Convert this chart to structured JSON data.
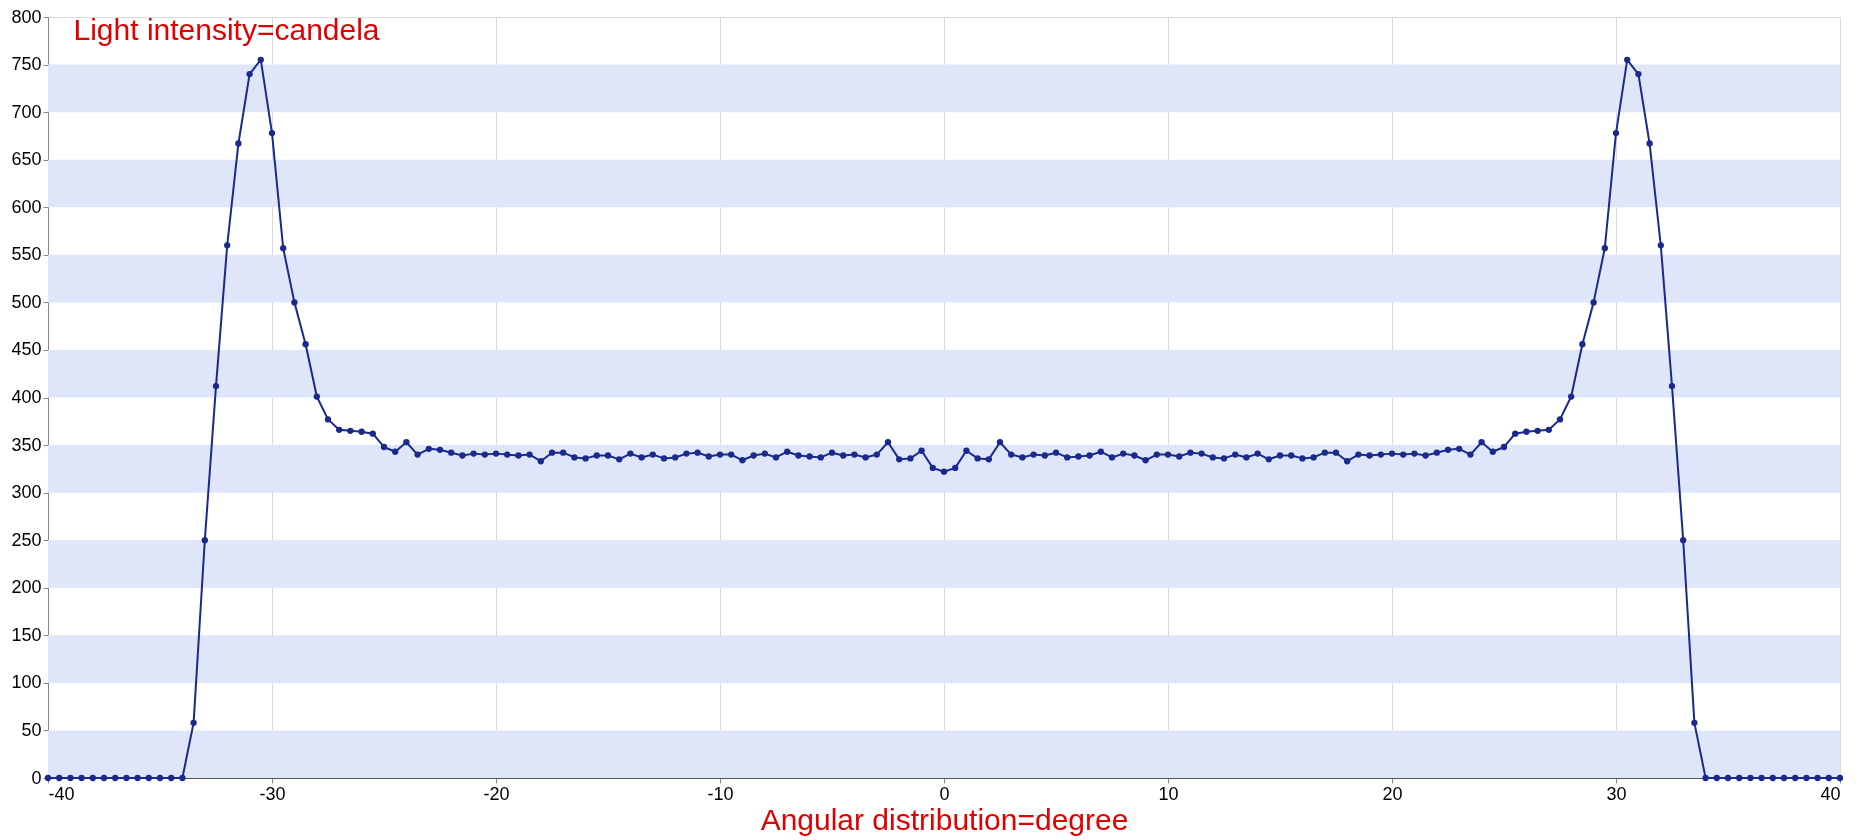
{
  "chart_data": {
    "type": "line",
    "xlabel": "Angular distribution=degree",
    "ylabel": "Light intensity=candela",
    "x": [
      -40,
      -39.5,
      -39,
      -38.5,
      -38,
      -37.5,
      -37,
      -36.5,
      -36,
      -35.5,
      -35,
      -34.5,
      -34,
      -33.5,
      -33,
      -32.5,
      -32,
      -31.5,
      -31,
      -30.5,
      -30,
      -29.5,
      -29,
      -28.5,
      -28,
      -27.5,
      -27,
      -26.5,
      -26,
      -25.5,
      -25,
      -24.5,
      -24,
      -23.5,
      -23,
      -22.5,
      -22,
      -21.5,
      -21,
      -20.5,
      -20,
      -19.5,
      -19,
      -18.5,
      -18,
      -17.5,
      -17,
      -16.5,
      -16,
      -15.5,
      -15,
      -14.5,
      -14,
      -13.5,
      -13,
      -12.5,
      -12,
      -11.5,
      -11,
      -10.5,
      -10,
      -9.5,
      -9,
      -8.5,
      -8,
      -7.5,
      -7,
      -6.5,
      -6,
      -5.5,
      -5,
      -4.5,
      -4,
      -3.5,
      -3,
      -2.5,
      -2,
      -1.5,
      -1,
      -0.5,
      0,
      0.5,
      1,
      1.5,
      2,
      2.5,
      3,
      3.5,
      4,
      4.5,
      5,
      5.5,
      6,
      6.5,
      7,
      7.5,
      8,
      8.5,
      9,
      9.5,
      10,
      10.5,
      11,
      11.5,
      12,
      12.5,
      13,
      13.5,
      14,
      14.5,
      15,
      15.5,
      16,
      16.5,
      17,
      17.5,
      18,
      18.5,
      19,
      19.5,
      20,
      20.5,
      21,
      21.5,
      22,
      22.5,
      23,
      23.5,
      24,
      24.5,
      25,
      25.5,
      26,
      26.5,
      27,
      27.5,
      28,
      28.5,
      29,
      29.5,
      30,
      30.5,
      31,
      31.5,
      32,
      32.5,
      33,
      33.5,
      34,
      34.5,
      35,
      35.5,
      36,
      36.5,
      37,
      37.5,
      38,
      38.5,
      39,
      39.5,
      40
    ],
    "series": [
      {
        "color": "#1a2a8c",
        "values": [
          0,
          0,
          0,
          0,
          0,
          0,
          0,
          0,
          0,
          0,
          0,
          0,
          0,
          58,
          250,
          412,
          560,
          667,
          740,
          755,
          678,
          557,
          500,
          456,
          401,
          377,
          366,
          365,
          364,
          362,
          348,
          343,
          353,
          340,
          346,
          345,
          342,
          339,
          341,
          340,
          341,
          340,
          339,
          340,
          333,
          342,
          342,
          337,
          336,
          339,
          339,
          335,
          341,
          337,
          340,
          336,
          337,
          341,
          342,
          338,
          340,
          340,
          334,
          339,
          341,
          337,
          343,
          339,
          338,
          337,
          342,
          339,
          340,
          337,
          340,
          353,
          335,
          336,
          344,
          326,
          322,
          326,
          344,
          336,
          335,
          353,
          340,
          337,
          340,
          339,
          342,
          337,
          338,
          339,
          343,
          337,
          341,
          339,
          334,
          340,
          340,
          338,
          342,
          341,
          337,
          336,
          340,
          337,
          341,
          335,
          339,
          339,
          336,
          337,
          342,
          342,
          333,
          340,
          339,
          340,
          341,
          340,
          341,
          339,
          342,
          345,
          346,
          340,
          353,
          343,
          348,
          362,
          364,
          365,
          366,
          377,
          401,
          456,
          500,
          557,
          678,
          755,
          740,
          667,
          560,
          412,
          250,
          58,
          0,
          0,
          0,
          0,
          0,
          0,
          0,
          0,
          0,
          0,
          0,
          0,
          0
        ]
      }
    ],
    "xlim": [
      -40,
      40
    ],
    "xticks": [
      -40,
      -30,
      -20,
      -10,
      0,
      10,
      20,
      30,
      40
    ],
    "ylim": [
      0,
      800
    ],
    "yticks": [
      0,
      50,
      100,
      150,
      200,
      250,
      300,
      350,
      400,
      450,
      500,
      550,
      600,
      650,
      700,
      750,
      800
    ],
    "bands": [
      {
        "axis": "y",
        "from": 0,
        "to": 50,
        "color": "#dfe6fa"
      },
      {
        "axis": "y",
        "from": 100,
        "to": 150,
        "color": "#dfe6fa"
      },
      {
        "axis": "y",
        "from": 200,
        "to": 250,
        "color": "#dfe6fa"
      },
      {
        "axis": "y",
        "from": 300,
        "to": 350,
        "color": "#dfe6fa"
      },
      {
        "axis": "y",
        "from": 400,
        "to": 450,
        "color": "#dfe6fa"
      },
      {
        "axis": "y",
        "from": 500,
        "to": 550,
        "color": "#dfe6fa"
      },
      {
        "axis": "y",
        "from": 600,
        "to": 650,
        "color": "#dfe6fa"
      },
      {
        "axis": "y",
        "from": 700,
        "to": 750,
        "color": "#dfe6fa"
      }
    ],
    "grid": "x",
    "marker": "circle",
    "line_style": "solid"
  }
}
